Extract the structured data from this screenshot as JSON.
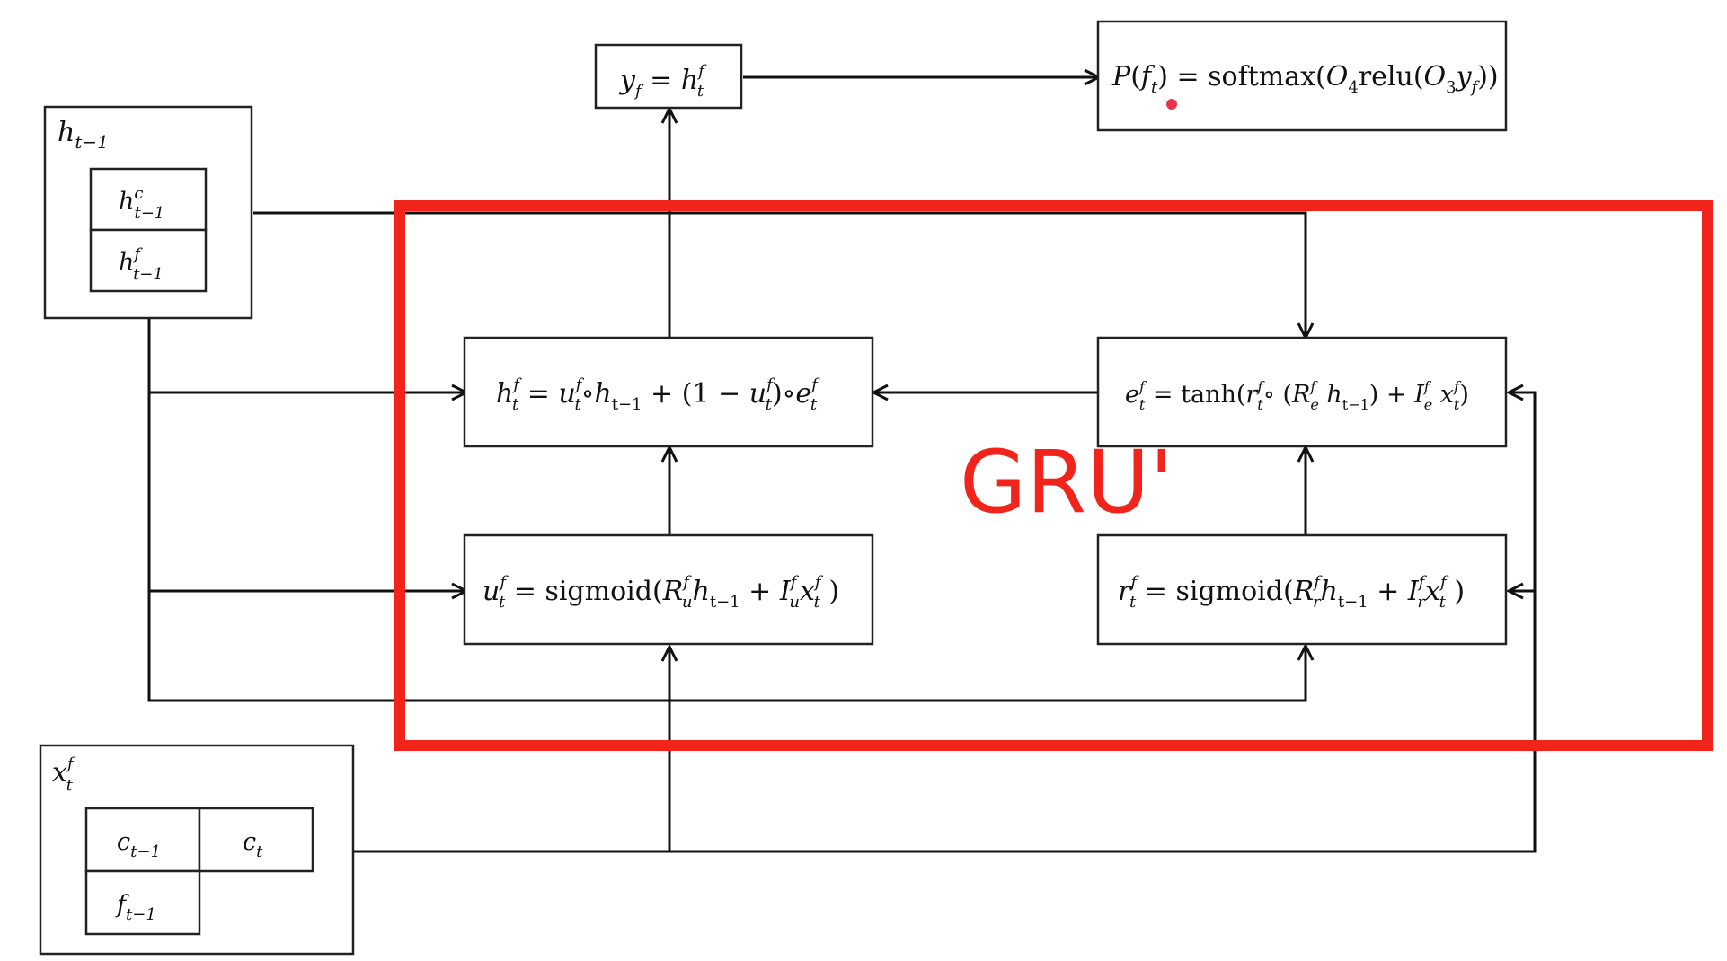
{
  "colors": {
    "line": "#111111",
    "box_border": "#222222",
    "region_accent": "#f0241a",
    "marker_dot": "#e8344a"
  },
  "region": {
    "label": "GRU'"
  },
  "nodes": {
    "h_prev": {
      "label": "h_{t−1}",
      "parts": [
        "h^c_{t−1}",
        "h^f_{t−1}"
      ]
    },
    "x_input": {
      "label": "x^f_t",
      "parts": [
        "c_{t−1}",
        "c_t",
        "f_{t−1}"
      ]
    },
    "y_output": {
      "label": "y_f = h^f_t"
    },
    "prob_output": {
      "label": "P(f_t) = softmax(O_4 relu(O_3 y_f))"
    },
    "hidden_update": {
      "label": "h^f_t = u^f_t ∘ h_{t−1} + (1 − u^f_t) ∘ e^f_t"
    },
    "candidate": {
      "label": "e^f_t = tanh(r^f_t ∘ (R^f_e h_{t−1}) + I^f_e x^f_t)"
    },
    "update_gate": {
      "label": "u^f_t = sigmoid(R^f_u h_{t−1} + I^f_u x^f_t)"
    },
    "reset_gate": {
      "label": "r^f_t = sigmoid(R^f_r h_{t−1} + I^f_r x^f_t)"
    }
  }
}
